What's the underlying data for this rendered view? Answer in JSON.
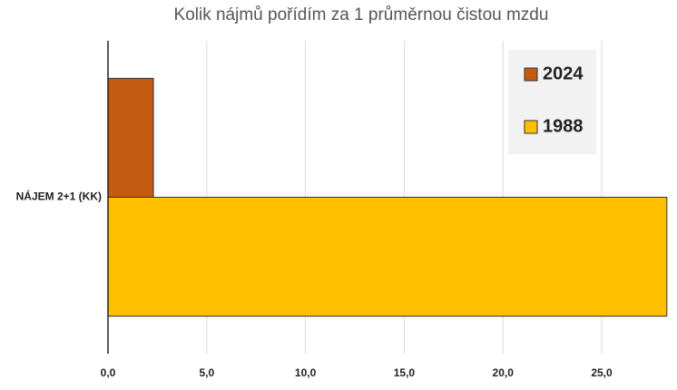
{
  "chart_data": {
    "type": "hbar",
    "title": "Kolik nájmů pořídím za 1 průměrnou čistou mzdu",
    "categories": [
      "NÁJEM 2+1 (KK)"
    ],
    "series": [
      {
        "name": "2024",
        "color": "#c55a11",
        "values": [
          2.3
        ]
      },
      {
        "name": "1988",
        "color": "#ffc000",
        "values": [
          28.3
        ]
      }
    ],
    "xlim": [
      0,
      28.4
    ],
    "xticks": [
      {
        "value": 0,
        "label": "0,0"
      },
      {
        "value": 5,
        "label": "5,0"
      },
      {
        "value": 10,
        "label": "10,0"
      },
      {
        "value": 15,
        "label": "15,0"
      },
      {
        "value": 20,
        "label": "20,0"
      },
      {
        "value": 25,
        "label": "25,0"
      }
    ],
    "grid": true,
    "legend": "upper right"
  }
}
